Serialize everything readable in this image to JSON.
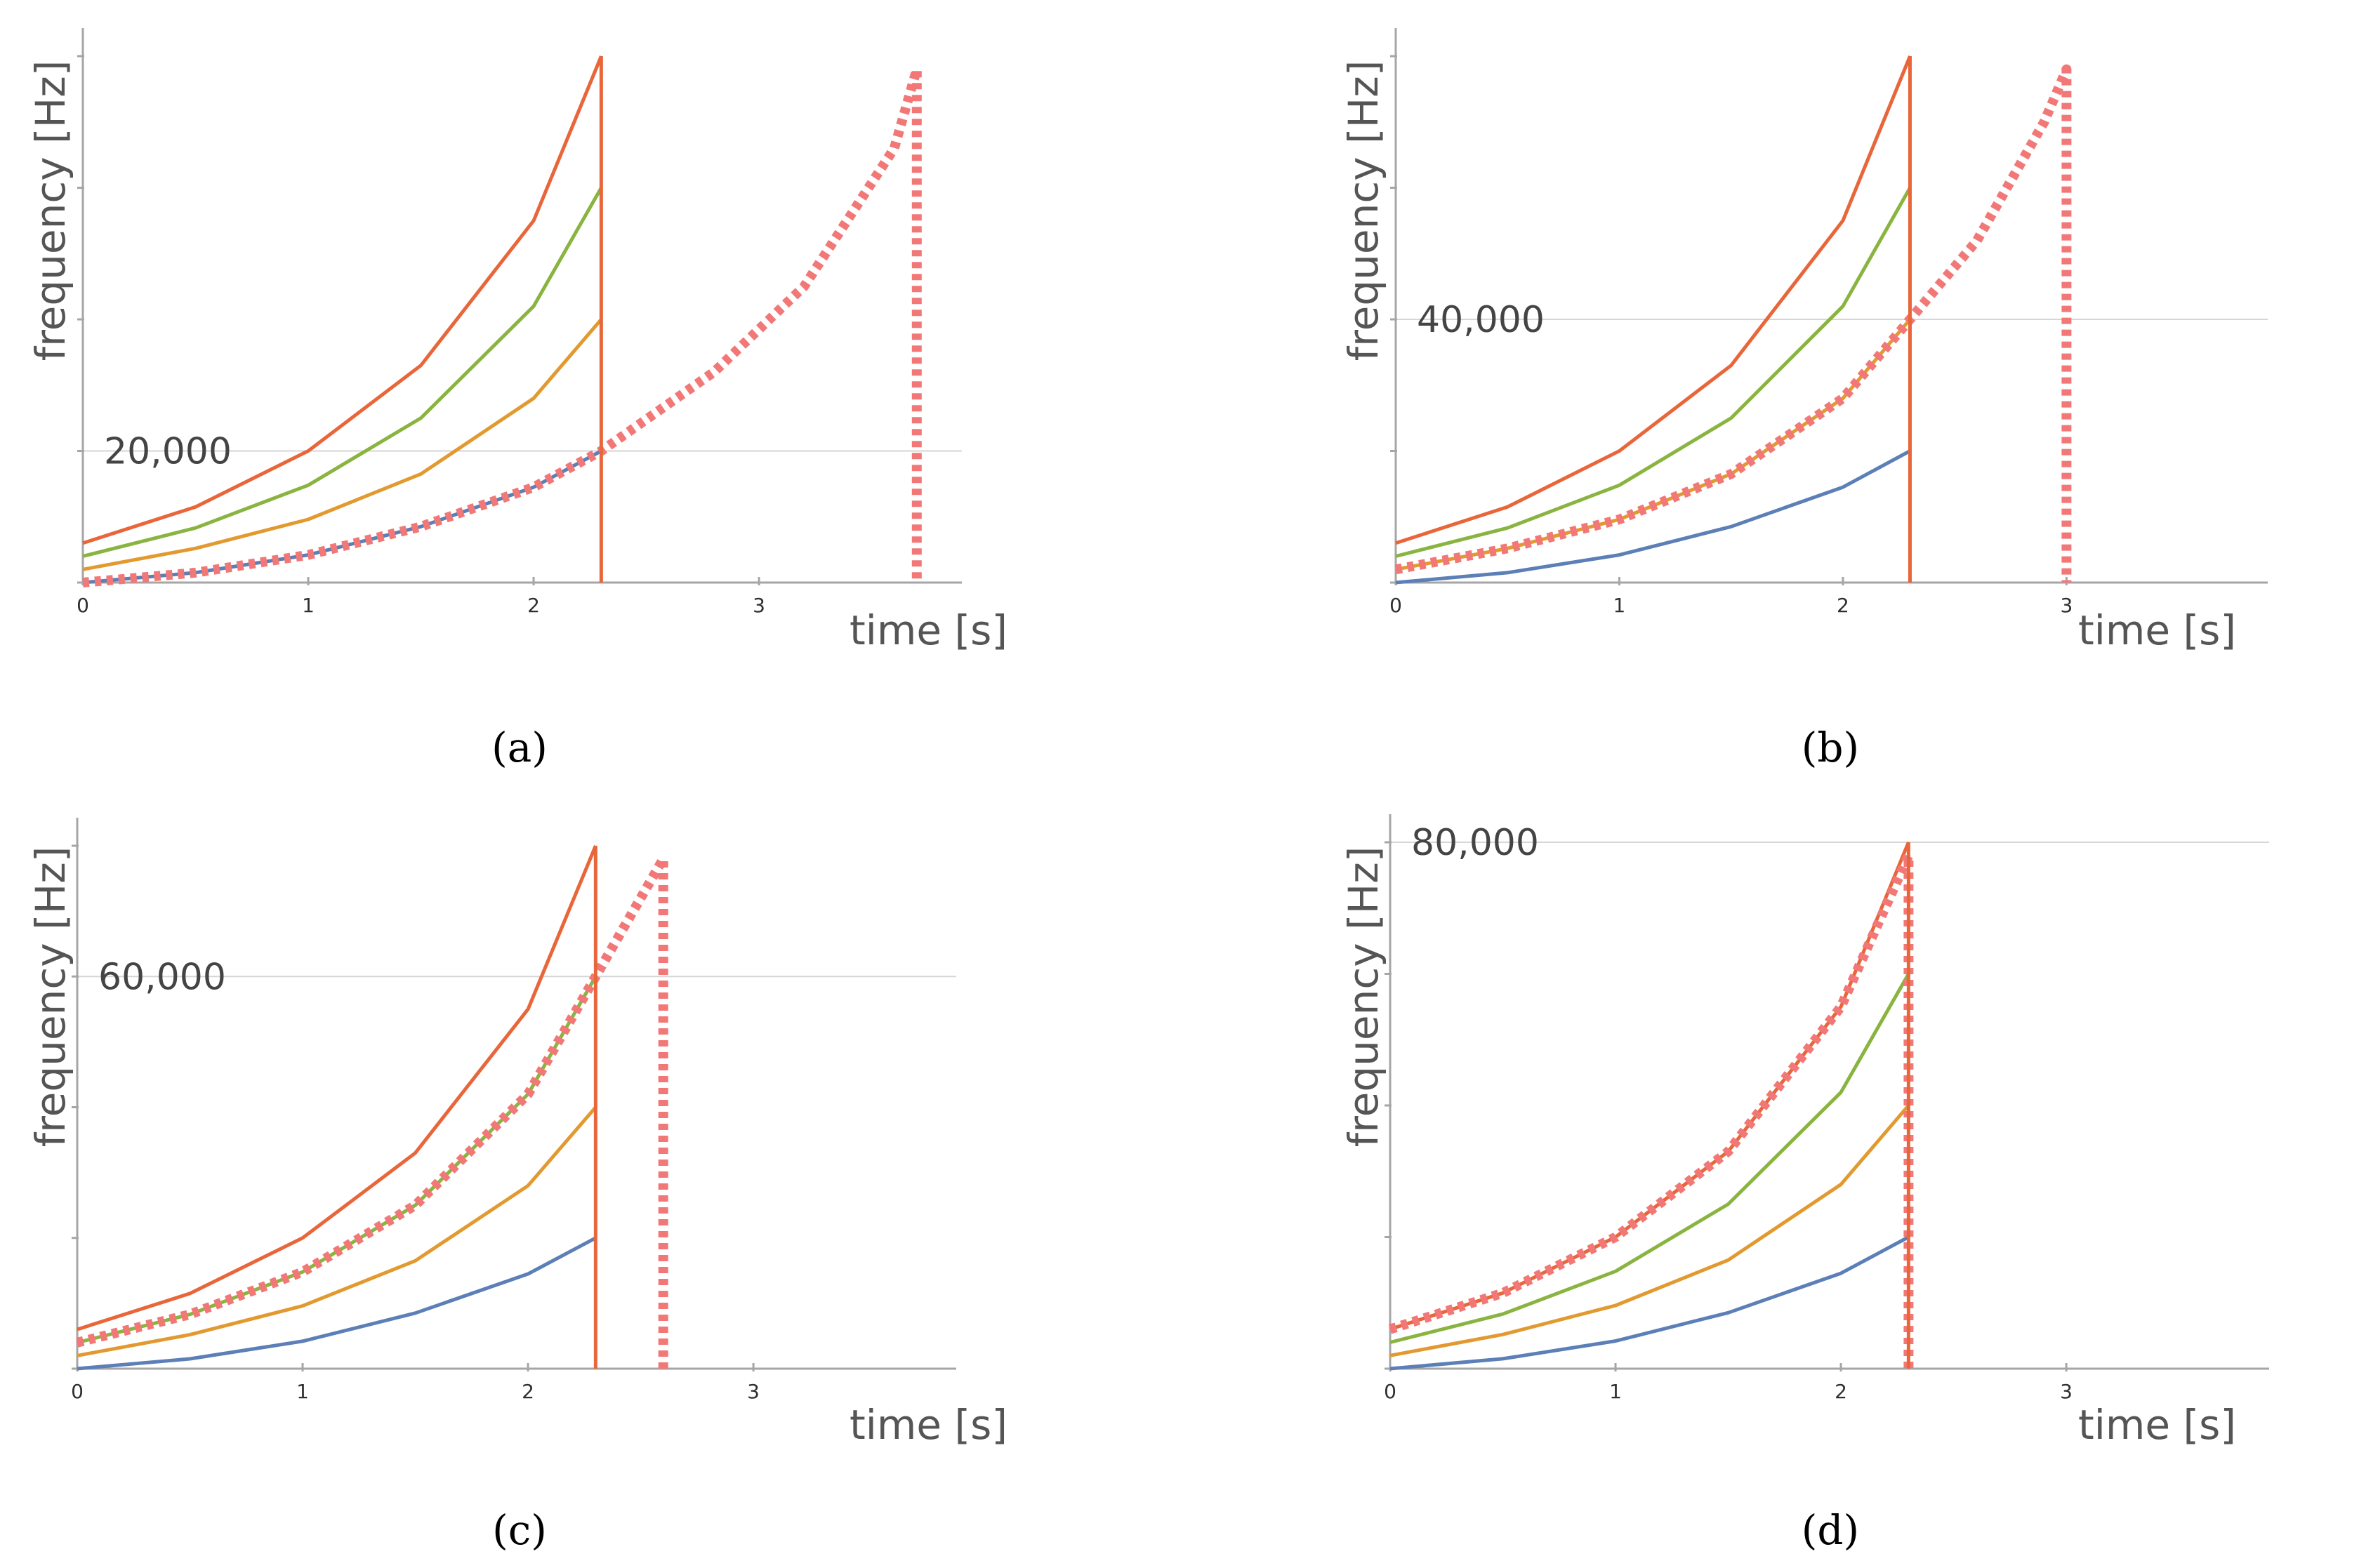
{
  "colors": {
    "blue": "#5b7fb6",
    "orange": "#e29a30",
    "green": "#8ab440",
    "red": "#e8663a",
    "dashed": "#f27878"
  },
  "chart_data": [
    {
      "type": "line",
      "caption": "(a)",
      "xlabel": "time [s]",
      "ylabel": "frequency [Hz]",
      "xlim": [
        0,
        3.9
      ],
      "ylim": [
        0,
        80000
      ],
      "xticks": [
        "0",
        "1",
        "2",
        "3"
      ],
      "gridline": {
        "value": 20000,
        "label": "20,000"
      },
      "cutoff_time": 2.3,
      "series": [
        {
          "name": "blue",
          "color": "#5b7fb6",
          "x": [
            0,
            0.5,
            1.0,
            1.5,
            2.0,
            2.3
          ],
          "values": [
            0,
            1500,
            4200,
            8500,
            14500,
            20000
          ]
        },
        {
          "name": "orange",
          "color": "#e29a30",
          "x": [
            0,
            0.5,
            1.0,
            1.5,
            2.0,
            2.3
          ],
          "values": [
            2000,
            5200,
            9600,
            16500,
            28000,
            40000
          ]
        },
        {
          "name": "green",
          "color": "#8ab440",
          "x": [
            0,
            0.5,
            1.0,
            1.5,
            2.0,
            2.3
          ],
          "values": [
            4000,
            8300,
            14800,
            25000,
            42000,
            60000
          ]
        },
        {
          "name": "red",
          "color": "#e8663a",
          "x": [
            0,
            0.5,
            1.0,
            1.5,
            2.0,
            2.3
          ],
          "values": [
            6000,
            11500,
            20000,
            33000,
            55000,
            80000
          ]
        },
        {
          "name": "dashed",
          "color": "#f27878",
          "dashed": true,
          "x": [
            0,
            0.5,
            1.0,
            1.5,
            2.0,
            2.3,
            2.8,
            3.2,
            3.6,
            3.7
          ],
          "values": [
            0,
            1500,
            4200,
            8500,
            14500,
            20000,
            32000,
            45000,
            66000,
            78000
          ],
          "drop_time": 3.7
        }
      ]
    },
    {
      "type": "line",
      "caption": "(b)",
      "xlabel": "time [s]",
      "ylabel": "frequency [Hz]",
      "xlim": [
        0,
        3.9
      ],
      "ylim": [
        0,
        80000
      ],
      "xticks": [
        "0",
        "1",
        "2",
        "3"
      ],
      "gridline": {
        "value": 40000,
        "label": "40,000"
      },
      "cutoff_time": 2.3,
      "series": [
        {
          "name": "blue",
          "color": "#5b7fb6",
          "x": [
            0,
            0.5,
            1.0,
            1.5,
            2.0,
            2.3
          ],
          "values": [
            0,
            1500,
            4200,
            8500,
            14500,
            20000
          ]
        },
        {
          "name": "orange",
          "color": "#e29a30",
          "x": [
            0,
            0.5,
            1.0,
            1.5,
            2.0,
            2.3
          ],
          "values": [
            2000,
            5200,
            9600,
            16500,
            28000,
            40000
          ]
        },
        {
          "name": "green",
          "color": "#8ab440",
          "x": [
            0,
            0.5,
            1.0,
            1.5,
            2.0,
            2.3
          ],
          "values": [
            4000,
            8300,
            14800,
            25000,
            42000,
            60000
          ]
        },
        {
          "name": "red",
          "color": "#e8663a",
          "x": [
            0,
            0.5,
            1.0,
            1.5,
            2.0,
            2.3
          ],
          "values": [
            6000,
            11500,
            20000,
            33000,
            55000,
            80000
          ]
        },
        {
          "name": "dashed",
          "color": "#f27878",
          "dashed": true,
          "x": [
            0,
            0.5,
            1.0,
            1.5,
            2.0,
            2.3,
            2.6,
            2.9,
            3.0
          ],
          "values": [
            2000,
            5200,
            9600,
            16500,
            28000,
            40000,
            52000,
            70000,
            78000
          ],
          "drop_time": 3.0
        }
      ]
    },
    {
      "type": "line",
      "caption": "(c)",
      "xlabel": "time [s]",
      "ylabel": "frequency [Hz]",
      "xlim": [
        0,
        3.9
      ],
      "ylim": [
        0,
        80000
      ],
      "xticks": [
        "0",
        "1",
        "2",
        "3"
      ],
      "gridline": {
        "value": 60000,
        "label": "60,000"
      },
      "cutoff_time": 2.3,
      "series": [
        {
          "name": "blue",
          "color": "#5b7fb6",
          "x": [
            0,
            0.5,
            1.0,
            1.5,
            2.0,
            2.3
          ],
          "values": [
            0,
            1500,
            4200,
            8500,
            14500,
            20000
          ]
        },
        {
          "name": "orange",
          "color": "#e29a30",
          "x": [
            0,
            0.5,
            1.0,
            1.5,
            2.0,
            2.3
          ],
          "values": [
            2000,
            5200,
            9600,
            16500,
            28000,
            40000
          ]
        },
        {
          "name": "green",
          "color": "#8ab440",
          "x": [
            0,
            0.5,
            1.0,
            1.5,
            2.0,
            2.3
          ],
          "values": [
            4000,
            8300,
            14800,
            25000,
            42000,
            60000
          ]
        },
        {
          "name": "red",
          "color": "#e8663a",
          "x": [
            0,
            0.5,
            1.0,
            1.5,
            2.0,
            2.3
          ],
          "values": [
            6000,
            11500,
            20000,
            33000,
            55000,
            80000
          ]
        },
        {
          "name": "dashed",
          "color": "#f27878",
          "dashed": true,
          "x": [
            0,
            0.5,
            1.0,
            1.5,
            2.0,
            2.3,
            2.45,
            2.6
          ],
          "values": [
            4000,
            8300,
            14800,
            25000,
            42000,
            60000,
            69000,
            78000
          ],
          "drop_time": 2.6
        }
      ]
    },
    {
      "type": "line",
      "caption": "(d)",
      "xlabel": "time [s]",
      "ylabel": "frequency [Hz]",
      "xlim": [
        0,
        3.9
      ],
      "ylim": [
        0,
        80000
      ],
      "xticks": [
        "0",
        "1",
        "2",
        "3"
      ],
      "gridline": {
        "value": 80000,
        "label": "80,000"
      },
      "cutoff_time": 2.3,
      "series": [
        {
          "name": "blue",
          "color": "#5b7fb6",
          "x": [
            0,
            0.5,
            1.0,
            1.5,
            2.0,
            2.3
          ],
          "values": [
            0,
            1500,
            4200,
            8500,
            14500,
            20000
          ]
        },
        {
          "name": "orange",
          "color": "#e29a30",
          "x": [
            0,
            0.5,
            1.0,
            1.5,
            2.0,
            2.3
          ],
          "values": [
            2000,
            5200,
            9600,
            16500,
            28000,
            40000
          ]
        },
        {
          "name": "green",
          "color": "#8ab440",
          "x": [
            0,
            0.5,
            1.0,
            1.5,
            2.0,
            2.3
          ],
          "values": [
            4000,
            8300,
            14800,
            25000,
            42000,
            60000
          ]
        },
        {
          "name": "red",
          "color": "#e8663a",
          "x": [
            0,
            0.5,
            1.0,
            1.5,
            2.0,
            2.3
          ],
          "values": [
            6000,
            11500,
            20000,
            33000,
            55000,
            80000
          ]
        },
        {
          "name": "dashed",
          "color": "#f27878",
          "dashed": true,
          "x": [
            0,
            0.5,
            1.0,
            1.5,
            2.0,
            2.3
          ],
          "values": [
            6000,
            11500,
            20000,
            33000,
            55000,
            78000
          ],
          "drop_time": 2.3
        }
      ]
    }
  ]
}
